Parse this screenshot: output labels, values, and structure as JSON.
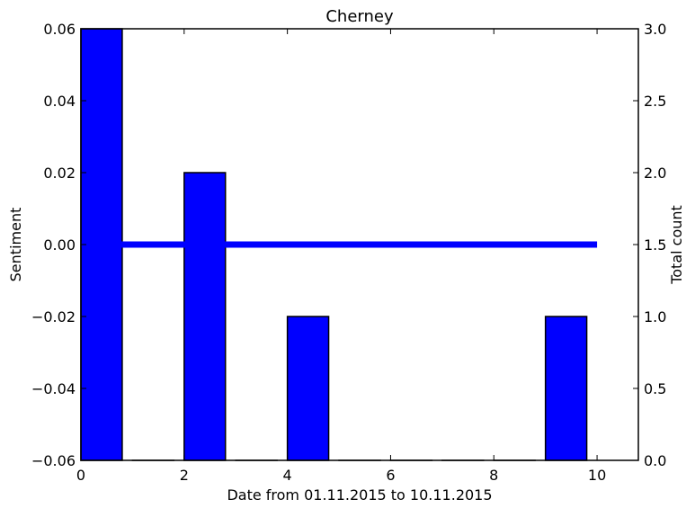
{
  "chart_data": {
    "type": "bar",
    "title": "Cherney",
    "xlabel": "Date from 01.11.2015 to 10.11.2015",
    "ylabel_left": "Sentiment",
    "ylabel_right": "Total count",
    "xlim": [
      0,
      10.8
    ],
    "ylim_left": [
      -0.06,
      0.06
    ],
    "ylim_right": [
      0,
      3.0
    ],
    "x_ticks": [
      "0",
      "2",
      "4",
      "6",
      "8",
      "10"
    ],
    "y_left_ticks": [
      "0.06",
      "0.04",
      "0.02",
      "0.00",
      "−0.02",
      "−0.04",
      "−0.06"
    ],
    "y_right_ticks": [
      "3.0",
      "2.5",
      "2.0",
      "1.5",
      "1.0",
      "0.5",
      "0.0"
    ],
    "grid": false,
    "series": [
      {
        "type": "bar",
        "axis": "right",
        "bar_width": 0.8,
        "x": [
          0,
          1,
          2,
          3,
          4,
          5,
          6,
          7,
          8,
          9
        ],
        "values": [
          3,
          0,
          2,
          0,
          1,
          0,
          0,
          0,
          0,
          1
        ]
      },
      {
        "type": "line",
        "axis": "left",
        "x": [
          0,
          1,
          2,
          3,
          4,
          5,
          6,
          7,
          8,
          9,
          10
        ],
        "values": [
          0,
          0,
          0,
          0,
          0,
          0,
          0,
          0,
          0,
          0,
          0
        ]
      }
    ],
    "colors": {
      "bar": "#0000ff",
      "line": "#0000ff",
      "axes": "#000000"
    }
  }
}
